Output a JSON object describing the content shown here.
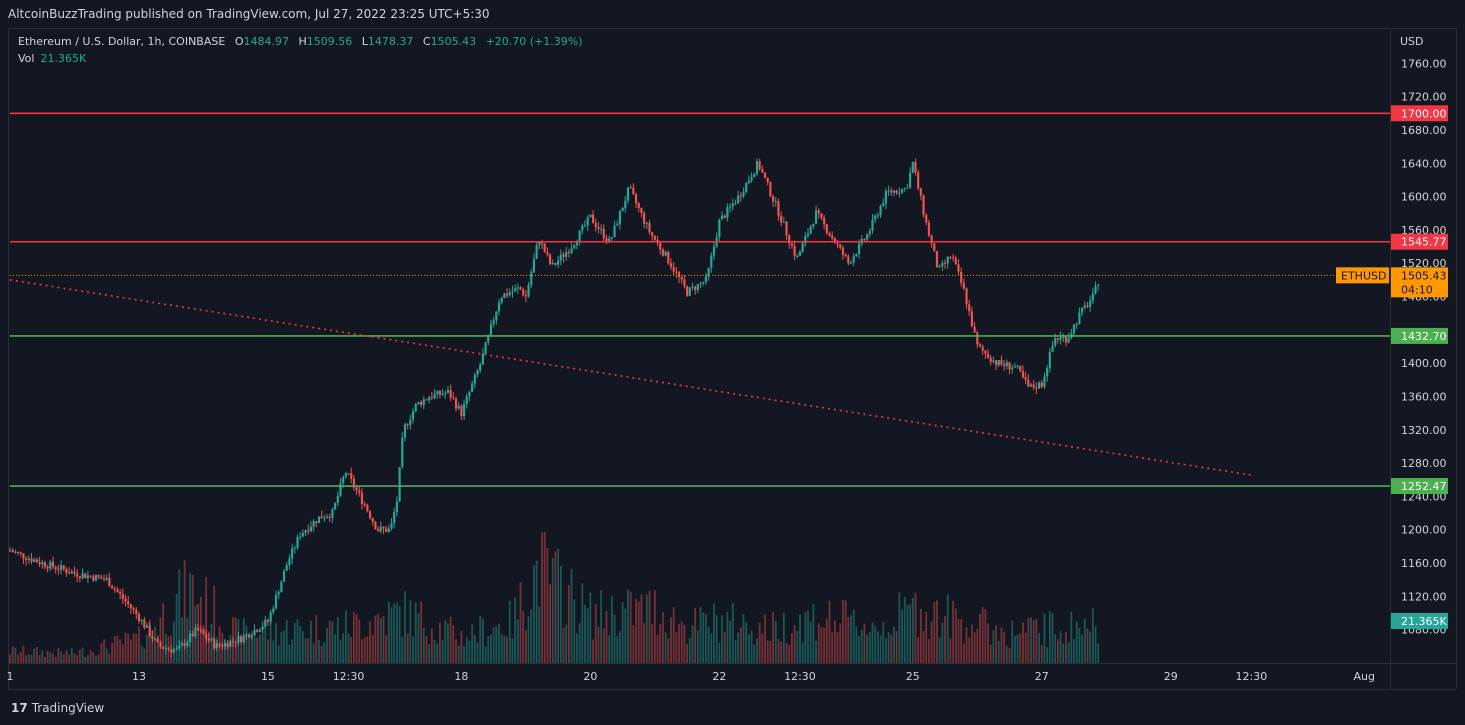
{
  "header": {
    "published_text": "AltcoinBuzzTrading published on TradingView.com, Jul 27, 2022 23:25 UTC+5:30"
  },
  "legend": {
    "symbol": "Ethereum / U.S. Dollar, 1h, COINBASE",
    "o_label": "O",
    "o_value": "1484.97",
    "h_label": "H",
    "h_value": "1509.56",
    "l_label": "L",
    "l_value": "1478.37",
    "c_label": "C",
    "c_value": "1505.43",
    "change": "+20.70 (+1.39%)",
    "vol_label": "Vol",
    "vol_value": "21.365K"
  },
  "footer": {
    "logo_mark": "17",
    "logo_text": "TradingView"
  },
  "chart_data": {
    "type": "candlestick",
    "symbol": "ETHUSD",
    "currency": "USD",
    "interval": "1h",
    "ylim": [
      1040,
      1800
    ],
    "y_ticks": [
      "1760.00",
      "1720.00",
      "1680.00",
      "1640.00",
      "1600.00",
      "1560.00",
      "1520.00",
      "1480.00",
      "1440.00",
      "1400.00",
      "1360.00",
      "1320.00",
      "1280.00",
      "1240.00",
      "1200.00",
      "1160.00",
      "1120.00",
      "1080.00"
    ],
    "y_tick_values": [
      1760,
      1720,
      1680,
      1640,
      1600,
      1560,
      1520,
      1480,
      1440,
      1400,
      1360,
      1320,
      1280,
      1240,
      1200,
      1160,
      1120,
      1080
    ],
    "x_ticks": [
      "1",
      "13",
      "15",
      "12:30",
      "18",
      "20",
      "22",
      "12:30",
      "25",
      "27",
      "29",
      "12:30",
      "Aug"
    ],
    "x_tick_days": [
      11,
      13,
      15,
      16.25,
      18,
      20,
      22,
      23.25,
      25,
      27,
      29,
      30.25,
      32
    ],
    "x_range_days": [
      11,
      32.4
    ],
    "horizontal_levels": [
      {
        "value": 1700.0,
        "label": "1700.00",
        "color": "#f23645"
      },
      {
        "value": 1545.77,
        "label": "1545.77",
        "color": "#f23645"
      },
      {
        "value": 1432.7,
        "label": "1432.70",
        "color": "#4caf50"
      },
      {
        "value": 1252.47,
        "label": "1252.47",
        "color": "#4caf50"
      }
    ],
    "trendline": {
      "color": "#f23645",
      "style": "dotted",
      "start_day": 11,
      "start_value": 1500,
      "end_day": 30.3,
      "end_value": 1265
    },
    "last_price": {
      "symbol_label": "ETHUSD",
      "value": "1505.43",
      "countdown": "04:10",
      "color": "#ff9800",
      "level": 1505.43
    },
    "volume_badge": {
      "value": "21.365K",
      "color": "#26a69a"
    },
    "price_path": [
      [
        11.0,
        1175
      ],
      [
        11.5,
        1160
      ],
      [
        12.0,
        1148
      ],
      [
        12.5,
        1140
      ],
      [
        13.0,
        1095
      ],
      [
        13.3,
        1060
      ],
      [
        13.6,
        1055
      ],
      [
        13.9,
        1080
      ],
      [
        14.2,
        1060
      ],
      [
        14.6,
        1070
      ],
      [
        15.0,
        1090
      ],
      [
        15.3,
        1160
      ],
      [
        15.5,
        1195
      ],
      [
        15.8,
        1215
      ],
      [
        16.0,
        1220
      ],
      [
        16.2,
        1270
      ],
      [
        16.5,
        1230
      ],
      [
        16.7,
        1200
      ],
      [
        16.9,
        1200
      ],
      [
        17.0,
        1235
      ],
      [
        17.1,
        1320
      ],
      [
        17.3,
        1350
      ],
      [
        17.5,
        1360
      ],
      [
        17.8,
        1365
      ],
      [
        18.0,
        1340
      ],
      [
        18.3,
        1400
      ],
      [
        18.6,
        1480
      ],
      [
        18.9,
        1490
      ],
      [
        19.0,
        1480
      ],
      [
        19.2,
        1550
      ],
      [
        19.4,
        1515
      ],
      [
        19.7,
        1540
      ],
      [
        20.0,
        1575
      ],
      [
        20.3,
        1545
      ],
      [
        20.6,
        1610
      ],
      [
        20.9,
        1560
      ],
      [
        21.2,
        1525
      ],
      [
        21.5,
        1485
      ],
      [
        21.8,
        1500
      ],
      [
        22.0,
        1570
      ],
      [
        22.3,
        1600
      ],
      [
        22.6,
        1640
      ],
      [
        22.9,
        1585
      ],
      [
        23.2,
        1525
      ],
      [
        23.5,
        1580
      ],
      [
        23.8,
        1545
      ],
      [
        24.0,
        1520
      ],
      [
        24.3,
        1555
      ],
      [
        24.6,
        1605
      ],
      [
        24.9,
        1610
      ],
      [
        25.0,
        1640
      ],
      [
        25.2,
        1570
      ],
      [
        25.4,
        1510
      ],
      [
        25.6,
        1530
      ],
      [
        25.8,
        1485
      ],
      [
        26.0,
        1420
      ],
      [
        26.3,
        1400
      ],
      [
        26.6,
        1395
      ],
      [
        26.8,
        1370
      ],
      [
        27.0,
        1375
      ],
      [
        27.2,
        1430
      ],
      [
        27.4,
        1430
      ],
      [
        27.6,
        1460
      ],
      [
        27.8,
        1480
      ],
      [
        27.9,
        1505
      ]
    ],
    "volume_path": [
      [
        11.0,
        0.1
      ],
      [
        12.0,
        0.08
      ],
      [
        13.0,
        0.2
      ],
      [
        13.8,
        0.62
      ],
      [
        14.5,
        0.25
      ],
      [
        15.5,
        0.28
      ],
      [
        16.2,
        0.3
      ],
      [
        17.1,
        0.42
      ],
      [
        18.0,
        0.22
      ],
      [
        18.8,
        0.35
      ],
      [
        19.2,
        0.8
      ],
      [
        20.0,
        0.4
      ],
      [
        21.0,
        0.45
      ],
      [
        21.5,
        0.3
      ],
      [
        22.0,
        0.35
      ],
      [
        22.8,
        0.28
      ],
      [
        23.5,
        0.38
      ],
      [
        24.5,
        0.3
      ],
      [
        25.0,
        0.45
      ],
      [
        25.8,
        0.35
      ],
      [
        26.5,
        0.25
      ],
      [
        27.0,
        0.28
      ],
      [
        27.9,
        0.32
      ]
    ]
  }
}
